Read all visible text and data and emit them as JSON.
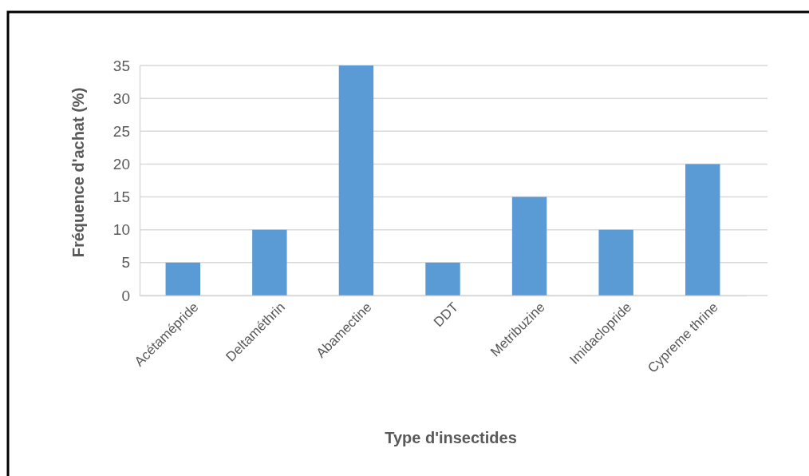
{
  "chart_data": {
    "type": "bar",
    "xlabel": "Type d'insectides",
    "ylabel": "Fréquence d'achat (%)",
    "categories": [
      "Acétamépride",
      "Deltaméthrin",
      "Abamectine",
      "DDT",
      "Metribuzine",
      "Imidaclopride",
      "Cypreme thrine"
    ],
    "values": [
      5,
      10,
      35,
      5,
      15,
      10,
      20
    ],
    "color": "#5b9bd5",
    "ylim": [
      0,
      35
    ],
    "yticks": [
      0,
      5,
      10,
      15,
      20,
      25,
      30,
      35
    ],
    "grid": "y"
  }
}
